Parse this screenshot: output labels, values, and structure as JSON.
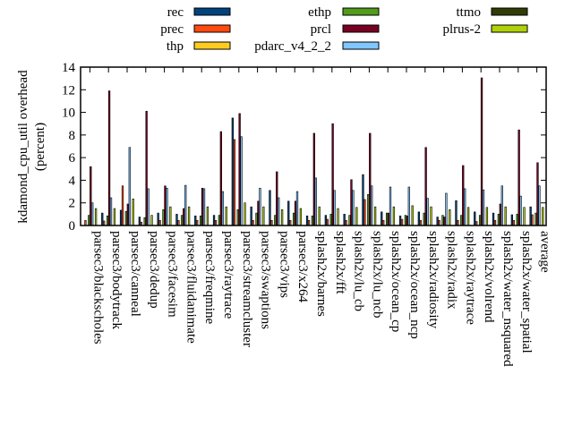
{
  "chart_data": {
    "type": "bar",
    "title": "",
    "ylabel": [
      "kdamond_cpu_util overhead",
      "(percent)"
    ],
    "xlabel": "",
    "ylim": [
      0,
      14
    ],
    "yticks": [
      0,
      2,
      4,
      6,
      8,
      10,
      12,
      14
    ],
    "grid": false,
    "legend_placement": "top",
    "categories": [
      "parsec3/blackscholes",
      "parsec3/bodytrack",
      "parsec3/canneal",
      "parsec3/dedup",
      "parsec3/facesim",
      "parsec3/fluidanimate",
      "parsec3/freqmine",
      "parsec3/raytrace",
      "parsec3/streamcluster",
      "parsec3/swaptions",
      "parsec3/vips",
      "parsec3/x264",
      "splash2x/barnes",
      "splash2x/fft",
      "splash2x/lu_cb",
      "splash2x/lu_ncb",
      "splash2x/ocean_cp",
      "splash2x/ocean_ncp",
      "splash2x/radiosity",
      "splash2x/radix",
      "splash2x/raytrace",
      "splash2x/volrend",
      "splash2x/water_nsquared",
      "splash2x/water_spatial",
      "average"
    ],
    "series": [
      {
        "name": "rec",
        "color": "#00437f",
        "values": [
          0,
          1.1,
          1.35,
          0.75,
          1.1,
          1.0,
          0.85,
          0.9,
          9.5,
          1.65,
          3.1,
          2.15,
          0.85,
          0.9,
          1.0,
          4.5,
          1.2,
          0.85,
          1.2,
          0.75,
          2.2,
          1.2,
          1.1,
          0.95,
          1.65
        ]
      },
      {
        "name": "prec",
        "color": "#ff4a10",
        "values": [
          0.45,
          0.4,
          3.5,
          0.3,
          0.45,
          0.45,
          0.45,
          0.45,
          7.6,
          0.45,
          0.45,
          0.45,
          0.45,
          0.55,
          0.45,
          2.3,
          0.45,
          0.55,
          0.45,
          0.45,
          0.45,
          0.35,
          0.45,
          0.45,
          0.95
        ]
      },
      {
        "name": "thp",
        "color": "#ffcc1f",
        "values": [
          0,
          0,
          0,
          0,
          0,
          0,
          0,
          0,
          0,
          0,
          0,
          0,
          0,
          0,
          0,
          0,
          0,
          0,
          0,
          0,
          0,
          0,
          0,
          0,
          0
        ]
      },
      {
        "name": "ethp",
        "color": "#529c1c",
        "values": [
          0.9,
          0.85,
          1.25,
          0.7,
          1.4,
          0.9,
          0.85,
          0.9,
          1.4,
          1.1,
          0.9,
          1.1,
          0.85,
          1.0,
          0.9,
          2.75,
          1.1,
          0.9,
          1.1,
          0.9,
          0.9,
          0.9,
          1.0,
          1.0,
          1.1
        ]
      },
      {
        "name": "prcl",
        "color": "#780022",
        "values": [
          5.2,
          11.9,
          1.9,
          10.1,
          3.5,
          1.5,
          3.3,
          8.3,
          9.9,
          2.15,
          4.75,
          2.15,
          8.15,
          9.0,
          4.05,
          8.15,
          1.1,
          0.85,
          6.9,
          0.75,
          5.3,
          13.05,
          1.9,
          8.45,
          5.55
        ]
      },
      {
        "name": "pdarc_v4_2_2",
        "color": "#80c6ff",
        "values": [
          2.0,
          2.45,
          6.9,
          3.25,
          3.3,
          3.55,
          3.25,
          3.0,
          7.85,
          3.3,
          2.45,
          3.0,
          4.2,
          3.1,
          3.1,
          3.5,
          3.4,
          3.4,
          2.4,
          2.85,
          3.25,
          3.15,
          3.5,
          2.6,
          3.5
        ]
      },
      {
        "name": "ttmo",
        "color": "#2f3d05",
        "values": [
          0,
          0,
          0,
          0,
          0,
          0,
          0,
          0,
          0,
          0,
          0,
          0,
          0,
          0,
          0,
          0,
          0,
          0,
          0,
          0,
          0,
          0,
          0,
          0,
          0
        ]
      },
      {
        "name": "plrus-2",
        "color": "#b0d00a",
        "values": [
          1.5,
          1.5,
          2.35,
          0.9,
          1.65,
          1.65,
          1.65,
          1.65,
          2.0,
          1.65,
          1.4,
          1.5,
          1.65,
          1.5,
          1.6,
          1.65,
          1.65,
          1.75,
          1.65,
          1.4,
          1.6,
          1.6,
          1.65,
          1.6,
          1.6
        ]
      }
    ]
  }
}
